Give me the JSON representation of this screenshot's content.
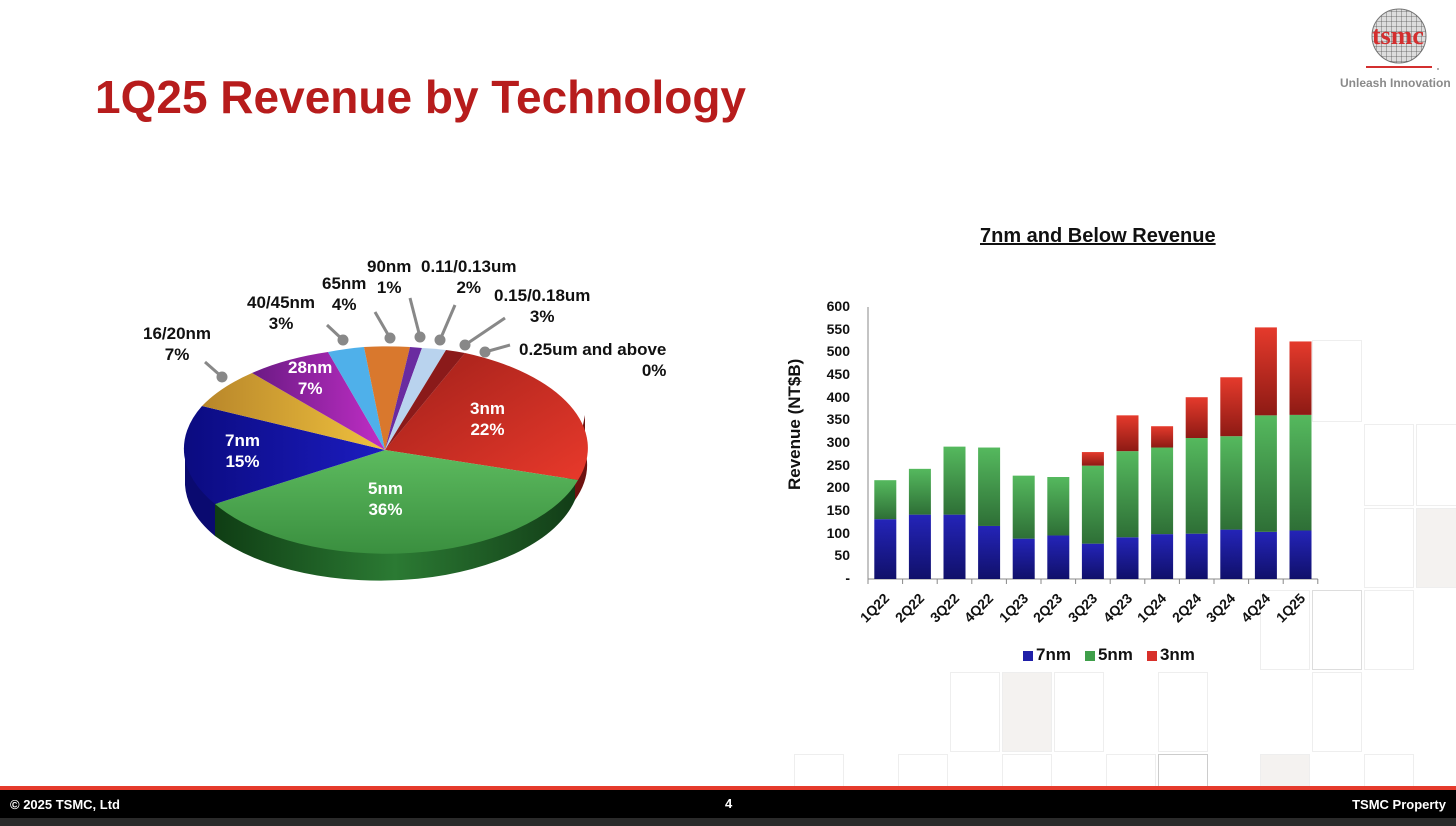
{
  "slide": {
    "title": "1Q25 Revenue by Technology",
    "logo_text": "tsmc",
    "logo_tagline": "Unleash Innovation",
    "footer": {
      "copyright": "© 2025 TSMC, Ltd",
      "page": "4",
      "property": "TSMC Property"
    }
  },
  "pie": {
    "labels": [
      {
        "name": "3nm",
        "pct": "22%"
      },
      {
        "name": "5nm",
        "pct": "36%"
      },
      {
        "name": "7nm",
        "pct": "15%"
      },
      {
        "name": "16/20nm",
        "pct": "7%"
      },
      {
        "name": "28nm",
        "pct": "7%"
      },
      {
        "name": "40/45nm",
        "pct": "3%"
      },
      {
        "name": "65nm",
        "pct": "4%"
      },
      {
        "name": "90nm",
        "pct": "1%"
      },
      {
        "name": "0.11/0.13um",
        "pct": "2%"
      },
      {
        "name": "0.15/0.18um",
        "pct": "3%"
      },
      {
        "name": "0.25um and above",
        "pct": "0%"
      }
    ]
  },
  "bar": {
    "title": "7nm and Below Revenue",
    "ylabel": "Revenue (NT$B)",
    "yticks": [
      "600",
      "550",
      "500",
      "450",
      "400",
      "350",
      "300",
      "250",
      "200",
      "150",
      "100",
      "50",
      "-"
    ],
    "legend": [
      {
        "label": "7nm",
        "color": "#1f1fa8"
      },
      {
        "label": "5nm",
        "color": "#3f9f4a"
      },
      {
        "label": "3nm",
        "color": "#d8302a"
      }
    ]
  },
  "chart_data": [
    {
      "type": "pie",
      "title": "1Q25 Revenue by Technology",
      "categories": [
        "3nm",
        "5nm",
        "7nm",
        "16/20nm",
        "28nm",
        "40/45nm",
        "65nm",
        "90nm",
        "0.11/0.13um",
        "0.15/0.18um",
        "0.25um and above"
      ],
      "values": [
        22,
        36,
        15,
        7,
        7,
        3,
        4,
        1,
        2,
        3,
        0
      ],
      "colors": [
        "#d8302a",
        "#3f9f4a",
        "#1515a8",
        "#e2b338",
        "#9c27b0",
        "#4fb0ea",
        "#d9782d",
        "#6a2ba0",
        "#b9d3ee",
        "#8b1a1a",
        "#c0392b"
      ]
    },
    {
      "type": "bar",
      "stacked": true,
      "title": "7nm and Below Revenue",
      "xlabel": "",
      "ylabel": "Revenue (NT$B)",
      "ylim": [
        0,
        600
      ],
      "categories": [
        "1Q22",
        "2Q22",
        "3Q22",
        "4Q22",
        "1Q23",
        "2Q23",
        "3Q23",
        "4Q23",
        "1Q24",
        "2Q24",
        "3Q24",
        "4Q24",
        "1Q25"
      ],
      "series": [
        {
          "name": "7nm",
          "values": [
            132,
            142,
            142,
            117,
            89,
            96,
            78,
            92,
            99,
            100,
            109,
            104,
            107
          ]
        },
        {
          "name": "5nm",
          "values": [
            86,
            101,
            150,
            173,
            139,
            129,
            172,
            190,
            191,
            211,
            206,
            257,
            255
          ]
        },
        {
          "name": "3nm",
          "values": [
            0,
            0,
            0,
            0,
            0,
            0,
            30,
            79,
            47,
            90,
            130,
            194,
            162
          ]
        }
      ],
      "legend_position": "bottom",
      "grid": false
    }
  ]
}
